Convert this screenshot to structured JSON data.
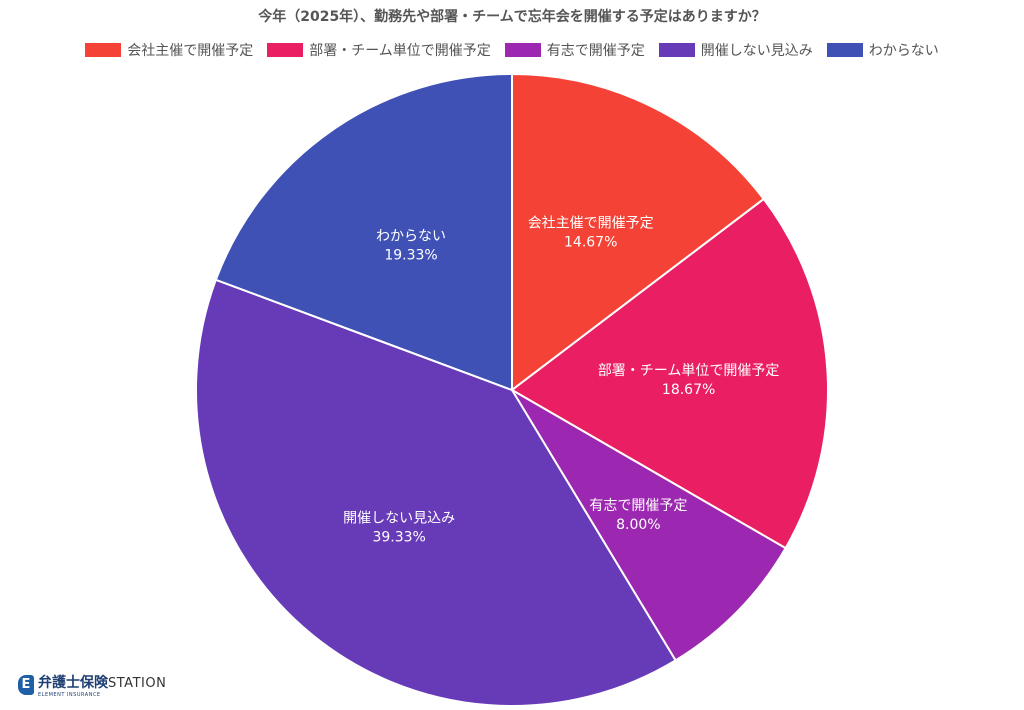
{
  "chart_data": {
    "type": "pie",
    "title": "今年（2025年）、勤務先や部署・チームで忘年会を開催する予定はありますか？",
    "legend_position": "top",
    "slices": [
      {
        "label": "会社主催で開催予定",
        "value": 14.67,
        "value_label": "14.67%",
        "color": "#f44336"
      },
      {
        "label": "部署・チーム単位で開催予定",
        "value": 18.67,
        "value_label": "18.67%",
        "color": "#e91e63"
      },
      {
        "label": "有志で開催予定",
        "value": 8.0,
        "value_label": "8.00%",
        "color": "#9c27b0"
      },
      {
        "label": "開催しない見込み",
        "value": 39.33,
        "value_label": "39.33%",
        "color": "#673ab7"
      },
      {
        "label": "わからない",
        "value": 19.33,
        "value_label": "19.33%",
        "color": "#3f51b5"
      }
    ]
  },
  "logo": {
    "name_jp": "弁護士保険",
    "name_en": "STATION",
    "sub": "ELEMENT INSURANCE",
    "mark": "E"
  }
}
